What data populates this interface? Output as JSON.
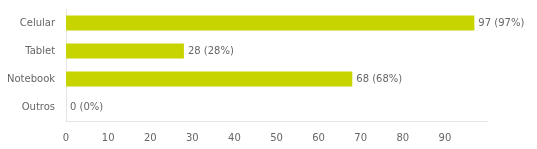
{
  "chart_data": {
    "type": "bar",
    "orientation": "horizontal",
    "categories": [
      "Outros",
      "Notebook",
      "Tablet",
      "Celular"
    ],
    "values": [
      0,
      68,
      28,
      97
    ],
    "value_labels": [
      "0 (0%)",
      "68 (68%)",
      "28 (28%)",
      "97 (97%)"
    ],
    "data_labels": true,
    "color": "#c8d400",
    "xlim": [
      0,
      100
    ],
    "xticks": [
      0,
      10,
      20,
      30,
      40,
      50,
      60,
      70,
      80,
      90
    ],
    "grid": false
  }
}
